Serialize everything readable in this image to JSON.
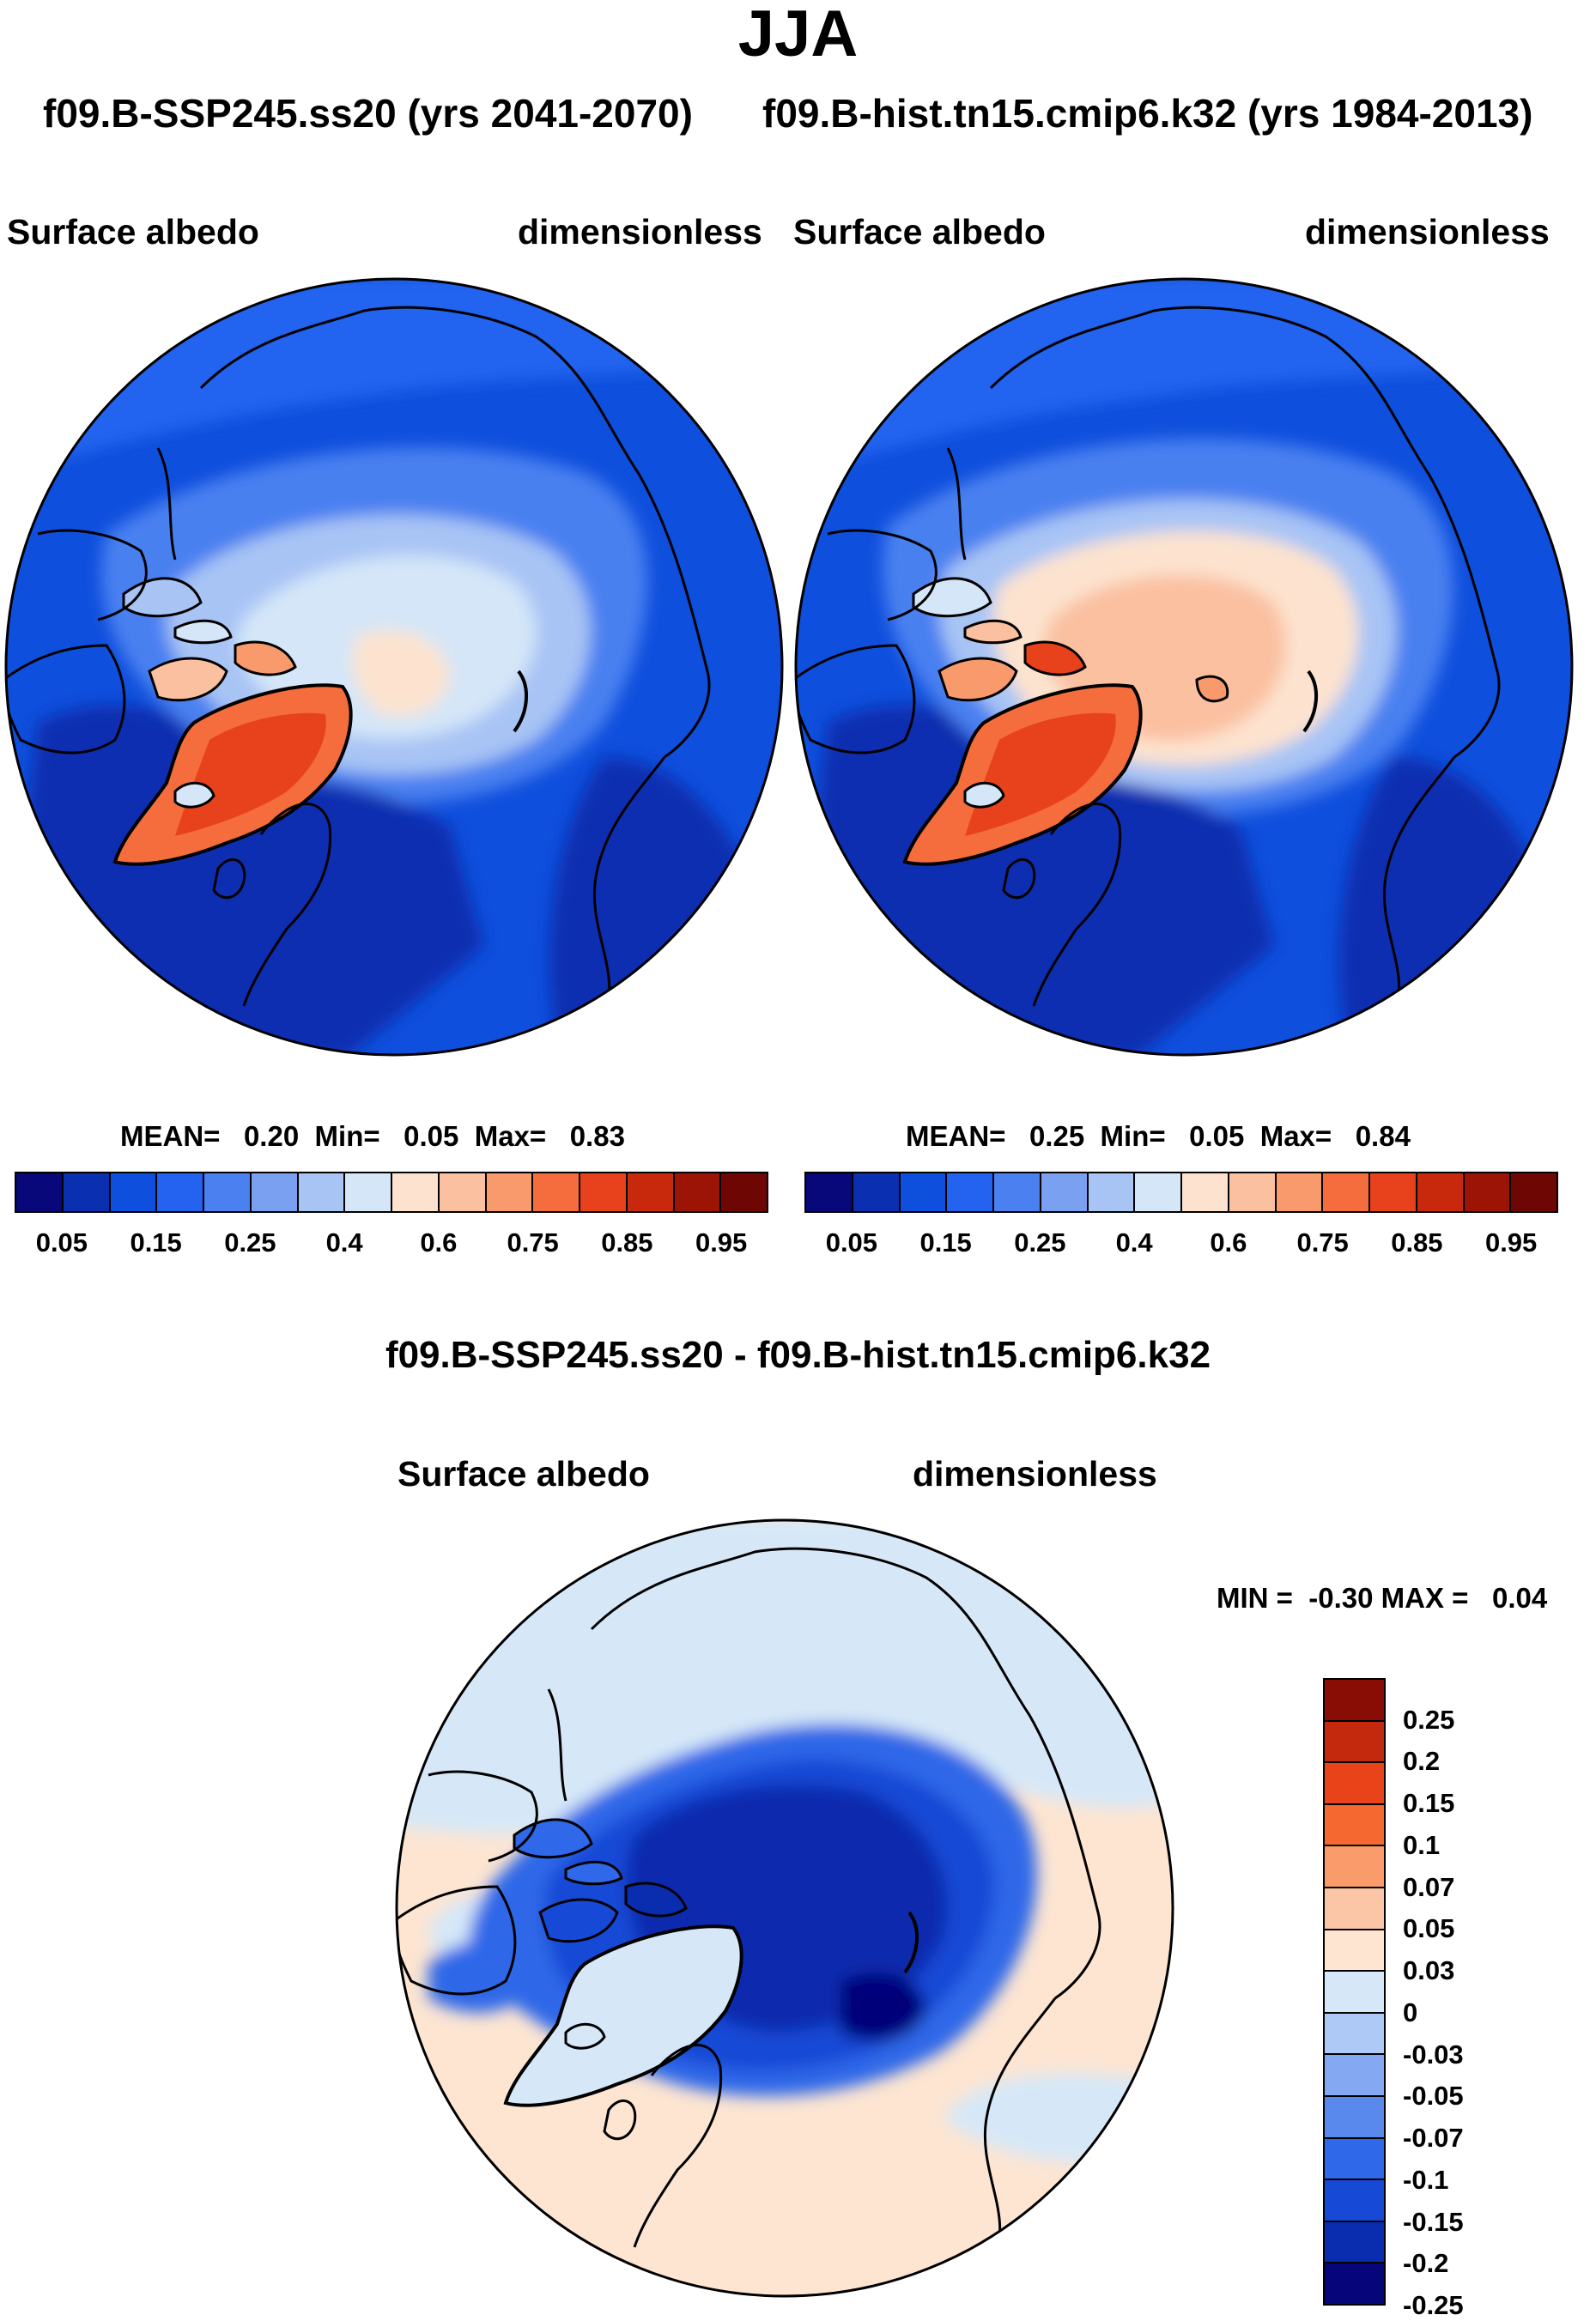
{
  "figure": {
    "season": "JJA",
    "subtitle_left": "f09.B-SSP245.ss20 (yrs 2041-2070)",
    "subtitle_right": "f09.B-hist.tn15.cmip6.k32 (yrs 1984-2013)",
    "diff_title": "f09.B-SSP245.ss20 - f09.B-hist.tn15.cmip6.k32"
  },
  "panels": {
    "left": {
      "variable": "Surface albedo",
      "units": "dimensionless",
      "stats": {
        "mean_label": "MEAN=",
        "mean": "0.20",
        "min_label": "Min=",
        "min": "0.05",
        "max_label": "Max=",
        "max": "0.83"
      }
    },
    "right": {
      "variable": "Surface albedo",
      "units": "dimensionless",
      "stats": {
        "mean_label": "MEAN=",
        "mean": "0.25",
        "min_label": "Min=",
        "min": "0.05",
        "max_label": "Max=",
        "max": "0.84"
      }
    },
    "diff": {
      "variable": "Surface albedo",
      "units": "dimensionless",
      "stats": {
        "min_label": "MIN =",
        "min": "-0.30",
        "max_label": "MAX =",
        "max": "0.04"
      }
    }
  },
  "colorbar_abs": {
    "colors": [
      "#08087a",
      "#0a2fb0",
      "#0f4fdd",
      "#2463ef",
      "#4a80f0",
      "#7aa0f2",
      "#a8c4f5",
      "#d4e6f8",
      "#fde3cf",
      "#fbc0a0",
      "#f99a6c",
      "#f56d3c",
      "#e8421c",
      "#c8290d",
      "#9c1406",
      "#6e0603"
    ],
    "tick_labels": [
      "0.05",
      "0.15",
      "0.25",
      "0.4",
      "0.6",
      "0.75",
      "0.85",
      "0.95"
    ]
  },
  "colorbar_diff": {
    "colors": [
      "#8a0d05",
      "#c4280d",
      "#e9431a",
      "#f5682f",
      "#f99b6b",
      "#fbc6a5",
      "#fde5d2",
      "#d6e8f8",
      "#aec9f5",
      "#84a8f2",
      "#5a89ee",
      "#2f68e8",
      "#1649d6",
      "#0a2cae",
      "#06067a"
    ],
    "tick_labels": [
      "0.25",
      "0.2",
      "0.15",
      "0.1",
      "0.07",
      "0.05",
      "0.03",
      "0",
      "-0.03",
      "-0.05",
      "-0.07",
      "-0.1",
      "-0.15",
      "-0.2",
      "-0.25"
    ]
  },
  "chart_data": [
    {
      "type": "heatmap",
      "projection": "north polar stereographic",
      "title": "f09.B-SSP245.ss20 (yrs 2041-2070)",
      "variable": "Surface albedo",
      "units": "dimensionless",
      "mean": 0.2,
      "min": 0.05,
      "max": 0.83,
      "contour_levels": [
        0.05,
        0.1,
        0.15,
        0.2,
        0.25,
        0.3,
        0.4,
        0.5,
        0.6,
        0.7,
        0.75,
        0.8,
        0.85,
        0.9,
        0.95
      ]
    },
    {
      "type": "heatmap",
      "projection": "north polar stereographic",
      "title": "f09.B-hist.tn15.cmip6.k32 (yrs 1984-2013)",
      "variable": "Surface albedo",
      "units": "dimensionless",
      "mean": 0.25,
      "min": 0.05,
      "max": 0.84,
      "contour_levels": [
        0.05,
        0.1,
        0.15,
        0.2,
        0.25,
        0.3,
        0.4,
        0.5,
        0.6,
        0.7,
        0.75,
        0.8,
        0.85,
        0.9,
        0.95
      ]
    },
    {
      "type": "heatmap",
      "projection": "north polar stereographic",
      "title": "f09.B-SSP245.ss20 - f09.B-hist.tn15.cmip6.k32",
      "variable": "Surface albedo",
      "units": "dimensionless",
      "min": -0.3,
      "max": 0.04,
      "contour_levels": [
        -0.25,
        -0.2,
        -0.15,
        -0.1,
        -0.07,
        -0.05,
        -0.03,
        0,
        0.03,
        0.05,
        0.07,
        0.1,
        0.15,
        0.2,
        0.25
      ]
    }
  ]
}
